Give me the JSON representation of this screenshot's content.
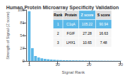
{
  "chart_data": {
    "type": "bar",
    "title": "Human Protein Microarray Specificity Validation",
    "xlabel": "Signal Rank",
    "ylabel": "Strength of Signal (Z score)",
    "x": [
      1,
      2,
      3,
      4,
      5,
      6,
      7,
      8,
      9,
      10,
      11,
      12,
      13,
      14,
      15,
      16,
      17,
      18,
      19,
      20,
      21,
      22,
      23,
      24,
      25,
      26,
      27,
      28,
      29,
      30
    ],
    "values": [
      105.22,
      27.28,
      10.65,
      7.5,
      5.8,
      4.6,
      3.8,
      3.2,
      2.7,
      2.3,
      2.0,
      1.8,
      1.6,
      1.5,
      1.4,
      1.3,
      1.2,
      1.1,
      1.0,
      0.9,
      0.85,
      0.8,
      0.75,
      0.7,
      0.65,
      0.62,
      0.58,
      0.55,
      0.52,
      0.5
    ],
    "color": "#5bb8e8",
    "xlim": [
      0,
      30
    ],
    "xticks": [
      1,
      10,
      20,
      30
    ],
    "ylim": [
      0,
      108
    ],
    "yticks": [
      0,
      27,
      54,
      81,
      108
    ],
    "grid": false,
    "table": {
      "headers": [
        "Rank",
        "Protein",
        "Z score",
        "S score"
      ],
      "rows": [
        [
          "1",
          "C1qA",
          "105.22",
          "90.94"
        ],
        [
          "2",
          "FGIF",
          "27.28",
          "16.63"
        ],
        [
          "3",
          "LHX1",
          "10.65",
          "7.48"
        ]
      ]
    }
  }
}
